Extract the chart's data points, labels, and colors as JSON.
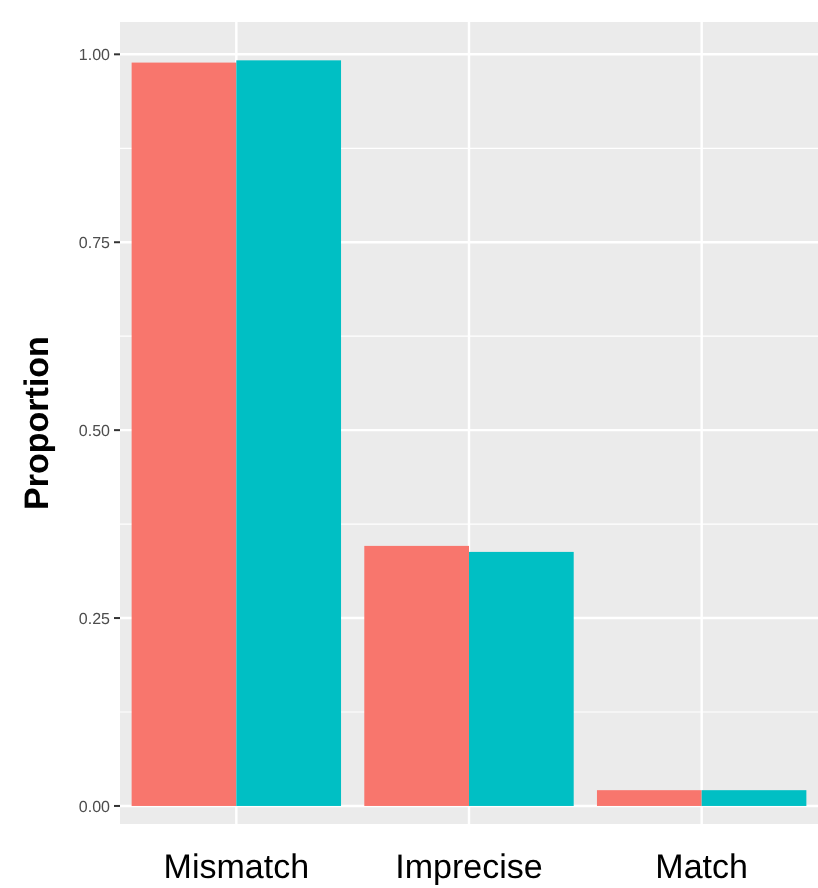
{
  "chart_data": {
    "type": "bar",
    "categories": [
      "Mismatch",
      "Imprecise",
      "Match"
    ],
    "series": [
      {
        "color": "#f8766d",
        "values": [
          0.989,
          0.346,
          0.021
        ]
      },
      {
        "color": "#00bfc4",
        "values": [
          0.992,
          0.338,
          0.021
        ]
      }
    ],
    "ylabel": "Proportion",
    "ylim": [
      -0.024,
      1.043
    ],
    "yticks": [
      {
        "value": 0,
        "label": "0.00"
      },
      {
        "value": 0.25,
        "label": "0.25"
      },
      {
        "value": 0.5,
        "label": "0.50"
      },
      {
        "value": 0.75,
        "label": "0.75"
      },
      {
        "value": 1,
        "label": "1.00"
      }
    ],
    "grid": true
  }
}
